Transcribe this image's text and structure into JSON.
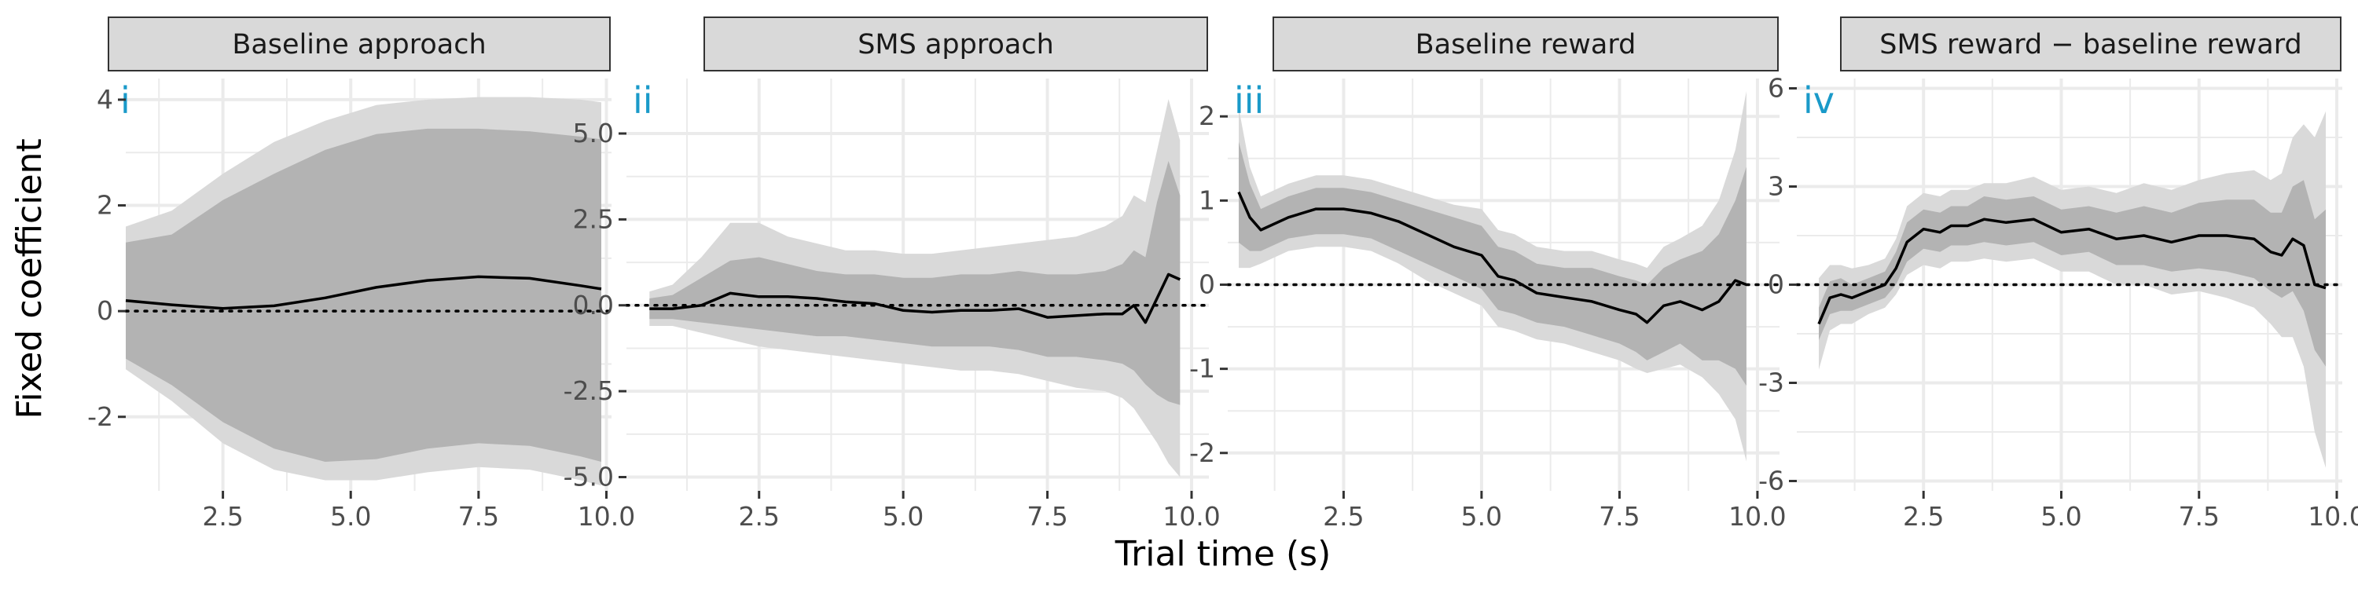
{
  "figure": {
    "ylabel": "Fixed coefficient",
    "xlabel": "Trial time (s)",
    "colors": {
      "band_outer": "#d9d9d9",
      "band_inner": "#b3b3b3",
      "line": "#000000",
      "grid": "#ebebeb",
      "strip_fill": "#d9d9d9",
      "strip_border": "#333333",
      "panel_tag": "#1a9ac9",
      "tick_text": "#4d4d4d"
    }
  },
  "chart_data": [
    {
      "type": "line",
      "title": "Baseline approach",
      "tag": "i",
      "xlim": [
        0.6,
        10.1
      ],
      "ylim": [
        -3.4,
        4.4
      ],
      "xticks": [
        2.5,
        5.0,
        7.5,
        10.0
      ],
      "xtick_labels": [
        "2.5",
        "5.0",
        "7.5",
        "10.0"
      ],
      "yticks": [
        -2,
        0,
        2,
        4
      ],
      "ytick_labels": [
        "-2",
        "0",
        "2",
        "4"
      ],
      "reference_line": 0,
      "series": [
        {
          "x": [
            0.6,
            1.5,
            2.5,
            3.5,
            4.5,
            5.5,
            6.5,
            7.5,
            8.5,
            9.5,
            9.9
          ],
          "mean": [
            0.2,
            0.12,
            0.05,
            0.1,
            0.25,
            0.45,
            0.58,
            0.65,
            0.62,
            0.48,
            0.42
          ],
          "inner_lo": [
            -0.9,
            -1.4,
            -2.1,
            -2.6,
            -2.85,
            -2.8,
            -2.6,
            -2.5,
            -2.55,
            -2.75,
            -2.85
          ],
          "inner_hi": [
            1.3,
            1.45,
            2.1,
            2.6,
            3.05,
            3.35,
            3.45,
            3.45,
            3.4,
            3.3,
            3.25
          ],
          "outer_lo": [
            -1.1,
            -1.7,
            -2.5,
            -3.0,
            -3.2,
            -3.2,
            -3.05,
            -2.95,
            -3.0,
            -3.2,
            -3.3
          ],
          "outer_hi": [
            1.6,
            1.9,
            2.6,
            3.2,
            3.6,
            3.9,
            4.0,
            4.05,
            4.05,
            4.0,
            3.95
          ]
        }
      ]
    },
    {
      "type": "line",
      "title": "SMS approach",
      "tag": "ii",
      "xlim": [
        0.2,
        10.3
      ],
      "ylim": [
        -5.4,
        6.6
      ],
      "xticks": [
        2.5,
        5.0,
        7.5,
        10.0
      ],
      "xtick_labels": [
        "2.5",
        "5.0",
        "7.5",
        "10.0"
      ],
      "yticks": [
        -5.0,
        -2.5,
        0.0,
        2.5,
        5.0
      ],
      "ytick_labels": [
        "-5.0",
        "-2.5",
        "0.0",
        "2.5",
        "5.0"
      ],
      "reference_line": 0,
      "series": [
        {
          "x": [
            0.6,
            1.0,
            1.5,
            2.0,
            2.5,
            3.0,
            3.5,
            4.0,
            4.5,
            5.0,
            5.5,
            6.0,
            6.5,
            7.0,
            7.5,
            8.0,
            8.5,
            8.8,
            9.0,
            9.2,
            9.4,
            9.6,
            9.8
          ],
          "mean": [
            -0.1,
            -0.1,
            0.0,
            0.35,
            0.25,
            0.25,
            0.2,
            0.1,
            0.05,
            -0.15,
            -0.2,
            -0.15,
            -0.15,
            -0.1,
            -0.35,
            -0.3,
            -0.25,
            -0.25,
            0.0,
            -0.5,
            0.2,
            0.9,
            0.75
          ],
          "inner_lo": [
            -0.4,
            -0.4,
            -0.5,
            -0.6,
            -0.7,
            -0.8,
            -0.9,
            -0.9,
            -1.0,
            -1.1,
            -1.2,
            -1.2,
            -1.2,
            -1.3,
            -1.5,
            -1.5,
            -1.6,
            -1.7,
            -1.9,
            -2.3,
            -2.6,
            -2.8,
            -2.9
          ],
          "inner_hi": [
            0.2,
            0.3,
            0.8,
            1.3,
            1.4,
            1.2,
            1.0,
            0.9,
            0.9,
            0.8,
            0.8,
            0.9,
            0.9,
            1.0,
            0.9,
            0.9,
            1.0,
            1.2,
            1.6,
            1.4,
            3.0,
            4.2,
            3.2
          ],
          "outer_lo": [
            -0.6,
            -0.6,
            -0.8,
            -1.0,
            -1.2,
            -1.3,
            -1.4,
            -1.5,
            -1.6,
            -1.7,
            -1.8,
            -1.9,
            -1.9,
            -2.0,
            -2.2,
            -2.4,
            -2.5,
            -2.7,
            -3.0,
            -3.5,
            -4.0,
            -4.6,
            -5.0
          ],
          "outer_hi": [
            0.4,
            0.6,
            1.4,
            2.4,
            2.4,
            2.0,
            1.8,
            1.6,
            1.6,
            1.5,
            1.5,
            1.6,
            1.7,
            1.8,
            1.9,
            2.0,
            2.3,
            2.6,
            3.2,
            3.0,
            4.5,
            6.0,
            4.8
          ]
        }
      ]
    },
    {
      "type": "line",
      "title": "Baseline reward",
      "tag": "iii",
      "xlim": [
        0.4,
        10.4
      ],
      "ylim": [
        -2.45,
        2.45
      ],
      "xticks": [
        2.5,
        5.0,
        7.5,
        10.0
      ],
      "xtick_labels": [
        "2.5",
        "5.0",
        "7.5",
        "10.0"
      ],
      "yticks": [
        -2,
        -1,
        0,
        1,
        2
      ],
      "ytick_labels": [
        "-2",
        "-1",
        "0",
        "1",
        "2"
      ],
      "reference_line": 0,
      "series": [
        {
          "x": [
            0.6,
            0.8,
            1.0,
            1.5,
            2.0,
            2.5,
            3.0,
            3.5,
            4.0,
            4.5,
            5.0,
            5.3,
            5.6,
            6.0,
            6.5,
            7.0,
            7.5,
            7.8,
            8.0,
            8.3,
            8.6,
            9.0,
            9.3,
            9.6,
            9.8
          ],
          "mean": [
            1.1,
            0.8,
            0.65,
            0.8,
            0.9,
            0.9,
            0.85,
            0.75,
            0.6,
            0.45,
            0.35,
            0.1,
            0.05,
            -0.1,
            -0.15,
            -0.2,
            -0.3,
            -0.35,
            -0.45,
            -0.25,
            -0.2,
            -0.3,
            -0.2,
            0.05,
            0.0
          ],
          "inner_lo": [
            0.5,
            0.4,
            0.4,
            0.55,
            0.6,
            0.6,
            0.55,
            0.4,
            0.25,
            0.1,
            -0.05,
            -0.3,
            -0.35,
            -0.45,
            -0.5,
            -0.6,
            -0.7,
            -0.8,
            -0.9,
            -0.8,
            -0.7,
            -0.9,
            -0.9,
            -1.0,
            -1.2
          ],
          "inner_hi": [
            1.7,
            1.2,
            0.9,
            1.05,
            1.15,
            1.15,
            1.1,
            1.0,
            0.9,
            0.8,
            0.7,
            0.45,
            0.4,
            0.25,
            0.2,
            0.2,
            0.1,
            0.05,
            0.0,
            0.2,
            0.3,
            0.4,
            0.6,
            1.0,
            1.4
          ],
          "outer_lo": [
            0.2,
            0.2,
            0.25,
            0.4,
            0.45,
            0.45,
            0.4,
            0.25,
            0.05,
            -0.1,
            -0.25,
            -0.5,
            -0.55,
            -0.65,
            -0.7,
            -0.8,
            -0.9,
            -1.0,
            -1.05,
            -1.0,
            -0.95,
            -1.1,
            -1.3,
            -1.6,
            -2.1
          ],
          "outer_hi": [
            2.1,
            1.4,
            1.05,
            1.2,
            1.3,
            1.3,
            1.25,
            1.15,
            1.05,
            0.95,
            0.9,
            0.65,
            0.6,
            0.45,
            0.4,
            0.4,
            0.3,
            0.25,
            0.2,
            0.45,
            0.55,
            0.7,
            1.0,
            1.6,
            2.3
          ]
        }
      ]
    },
    {
      "type": "line",
      "title": "SMS reward − baseline reward",
      "tag": "iv",
      "xlim": [
        0.2,
        10.1
      ],
      "ylim": [
        -6.3,
        6.3
      ],
      "xticks": [
        2.5,
        5.0,
        7.5,
        10.0
      ],
      "xtick_labels": [
        "2.5",
        "5.0",
        "7.5",
        "10.0"
      ],
      "yticks": [
        -6,
        -3,
        0,
        3,
        6
      ],
      "ytick_labels": [
        "-6",
        "-3",
        "0",
        "3",
        "6"
      ],
      "reference_line": 0,
      "series": [
        {
          "x": [
            0.6,
            0.8,
            1.0,
            1.2,
            1.5,
            1.8,
            2.0,
            2.2,
            2.5,
            2.8,
            3.0,
            3.3,
            3.6,
            4.0,
            4.5,
            5.0,
            5.5,
            6.0,
            6.5,
            7.0,
            7.5,
            8.0,
            8.5,
            8.8,
            9.0,
            9.2,
            9.4,
            9.6,
            9.8
          ],
          "mean": [
            -1.2,
            -0.4,
            -0.3,
            -0.4,
            -0.2,
            0.0,
            0.5,
            1.3,
            1.7,
            1.6,
            1.8,
            1.8,
            2.0,
            1.9,
            2.0,
            1.6,
            1.7,
            1.4,
            1.5,
            1.3,
            1.5,
            1.5,
            1.4,
            1.0,
            0.9,
            1.4,
            1.2,
            0.0,
            -0.1
          ],
          "inner_lo": [
            -1.7,
            -0.9,
            -0.8,
            -0.8,
            -0.6,
            -0.4,
            0.0,
            0.7,
            1.1,
            1.0,
            1.2,
            1.2,
            1.3,
            1.2,
            1.3,
            0.9,
            1.0,
            0.6,
            0.6,
            0.4,
            0.5,
            0.4,
            0.2,
            -0.2,
            -0.4,
            -0.2,
            -0.8,
            -2.0,
            -2.5
          ],
          "inner_hi": [
            -0.7,
            0.1,
            0.2,
            0.0,
            0.2,
            0.4,
            1.0,
            1.9,
            2.3,
            2.2,
            2.4,
            2.4,
            2.7,
            2.6,
            2.7,
            2.3,
            2.4,
            2.2,
            2.4,
            2.2,
            2.5,
            2.6,
            2.6,
            2.2,
            2.2,
            3.0,
            3.2,
            2.0,
            2.3
          ],
          "outer_lo": [
            -2.6,
            -1.4,
            -1.2,
            -1.2,
            -0.9,
            -0.7,
            -0.3,
            0.3,
            0.6,
            0.5,
            0.7,
            0.7,
            0.8,
            0.7,
            0.8,
            0.4,
            0.4,
            0.0,
            0.0,
            -0.3,
            -0.2,
            -0.4,
            -0.7,
            -1.2,
            -1.6,
            -1.6,
            -2.5,
            -4.5,
            -5.6
          ],
          "outer_hi": [
            0.2,
            0.6,
            0.6,
            0.5,
            0.6,
            0.8,
            1.4,
            2.4,
            2.8,
            2.7,
            2.9,
            2.9,
            3.1,
            3.1,
            3.3,
            2.9,
            3.0,
            2.8,
            3.1,
            2.9,
            3.2,
            3.4,
            3.5,
            3.2,
            3.4,
            4.5,
            4.9,
            4.5,
            5.3
          ]
        }
      ]
    }
  ]
}
